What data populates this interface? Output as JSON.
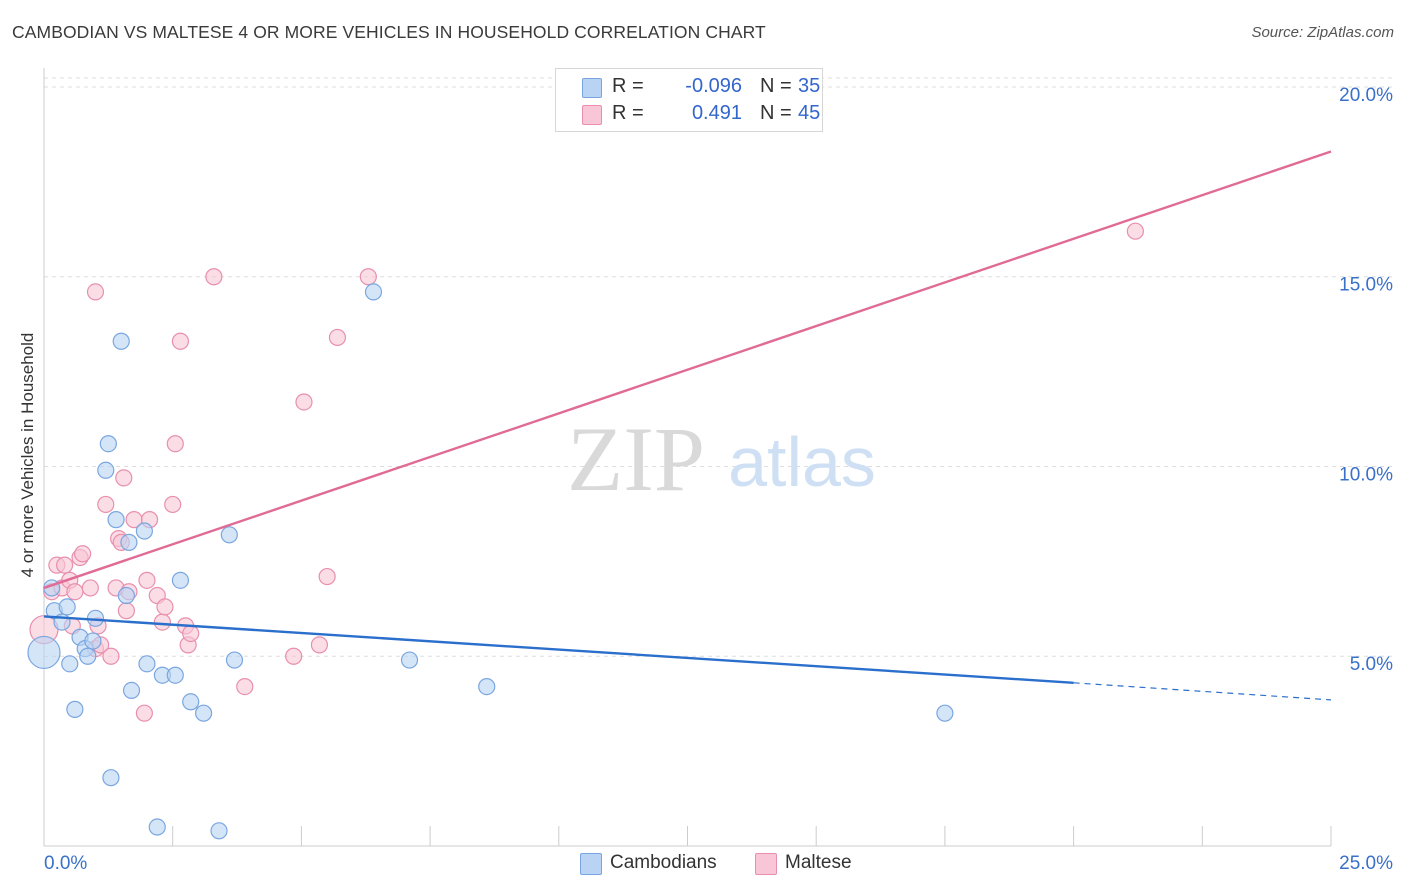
{
  "header": {
    "title": "CAMBODIAN VS MALTESE 4 OR MORE VEHICLES IN HOUSEHOLD CORRELATION CHART",
    "source": "Source: ZipAtlas.com"
  },
  "legend": {
    "rows": [
      {
        "r_label": "R =",
        "r_value": "-0.096",
        "n_label": "N =",
        "n_value": "35"
      },
      {
        "r_label": "R =",
        "r_value": "0.491",
        "n_label": "N =",
        "n_value": "45"
      }
    ],
    "bottom": [
      {
        "label": "Cambodians"
      },
      {
        "label": "Maltese"
      }
    ]
  },
  "watermark": {
    "zip": "ZIP",
    "atlas": "atlas"
  },
  "colors": {
    "cambodians_fill": "#b8d3f3",
    "cambodians_stroke": "#7aa6e0",
    "cambodians_line": "#2b6fcc",
    "maltese_fill": "#f8c6d6",
    "maltese_stroke": "#e88fae",
    "maltese_line": "#e06b95",
    "tick_label": "#3a70c8",
    "grid": "#dddddd"
  },
  "chart_data": {
    "type": "scatter",
    "title": "CAMBODIAN VS MALTESE 4 OR MORE VEHICLES IN HOUSEHOLD CORRELATION CHART",
    "xlabel": "",
    "ylabel": "4 or more Vehicles in Household",
    "xlim": [
      0,
      25
    ],
    "ylim": [
      0,
      20.5
    ],
    "x_tick_labels": [
      "0.0%",
      "25.0%"
    ],
    "y_ticks": [
      5,
      10,
      15,
      20
    ],
    "y_tick_labels": [
      "5.0%",
      "10.0%",
      "15.0%",
      "20.0%"
    ],
    "grid": true,
    "series": [
      {
        "name": "Cambodians",
        "points": [
          [
            0.0,
            5.1,
            32
          ],
          [
            0.15,
            6.8,
            16
          ],
          [
            0.2,
            6.2,
            16
          ],
          [
            0.35,
            5.9,
            16
          ],
          [
            0.45,
            6.3,
            16
          ],
          [
            0.5,
            4.8,
            16
          ],
          [
            0.6,
            3.6,
            16
          ],
          [
            0.7,
            5.5,
            16
          ],
          [
            0.8,
            5.2,
            16
          ],
          [
            0.85,
            5.0,
            16
          ],
          [
            0.95,
            5.4,
            16
          ],
          [
            1.0,
            6.0,
            16
          ],
          [
            1.25,
            10.6,
            16
          ],
          [
            1.3,
            1.8,
            16
          ],
          [
            1.2,
            9.9,
            16
          ],
          [
            1.4,
            8.6,
            16
          ],
          [
            1.5,
            13.3,
            16
          ],
          [
            1.6,
            6.6,
            16
          ],
          [
            1.65,
            8.0,
            16
          ],
          [
            1.7,
            4.1,
            16
          ],
          [
            1.95,
            8.3,
            16
          ],
          [
            2.0,
            4.8,
            16
          ],
          [
            2.2,
            0.5,
            16
          ],
          [
            2.3,
            4.5,
            16
          ],
          [
            2.55,
            4.5,
            16
          ],
          [
            2.65,
            7.0,
            16
          ],
          [
            2.85,
            3.8,
            16
          ],
          [
            3.1,
            3.5,
            16
          ],
          [
            3.4,
            0.4,
            16
          ],
          [
            3.6,
            8.2,
            16
          ],
          [
            3.7,
            4.9,
            16
          ],
          [
            6.4,
            14.6,
            16
          ],
          [
            7.1,
            4.9,
            16
          ],
          [
            8.6,
            4.2,
            16
          ],
          [
            17.5,
            3.5,
            16
          ]
        ],
        "trend": {
          "x": [
            0,
            20
          ],
          "y": [
            6.05,
            4.3
          ]
        },
        "trend_dashed": {
          "x": [
            20,
            25
          ],
          "y": [
            4.3,
            3.85
          ]
        }
      },
      {
        "name": "Maltese",
        "points": [
          [
            0.0,
            5.7,
            28
          ],
          [
            0.15,
            6.7,
            16
          ],
          [
            0.25,
            7.4,
            16
          ],
          [
            0.35,
            6.8,
            16
          ],
          [
            0.4,
            7.4,
            16
          ],
          [
            0.5,
            7.0,
            16
          ],
          [
            0.55,
            5.8,
            16
          ],
          [
            0.6,
            6.7,
            16
          ],
          [
            0.7,
            7.6,
            16
          ],
          [
            0.75,
            7.7,
            16
          ],
          [
            0.9,
            6.8,
            16
          ],
          [
            1.0,
            14.6,
            16
          ],
          [
            1.0,
            5.2,
            16
          ],
          [
            1.05,
            5.8,
            16
          ],
          [
            1.1,
            5.3,
            16
          ],
          [
            1.2,
            9.0,
            16
          ],
          [
            1.3,
            5.0,
            16
          ],
          [
            1.4,
            6.8,
            16
          ],
          [
            1.45,
            8.1,
            16
          ],
          [
            1.5,
            8.0,
            16
          ],
          [
            1.55,
            9.7,
            16
          ],
          [
            1.6,
            6.2,
            16
          ],
          [
            1.65,
            6.7,
            16
          ],
          [
            1.75,
            8.6,
            16
          ],
          [
            1.95,
            3.5,
            16
          ],
          [
            2.0,
            7.0,
            16
          ],
          [
            2.05,
            8.6,
            16
          ],
          [
            2.2,
            6.6,
            16
          ],
          [
            2.3,
            5.9,
            16
          ],
          [
            2.35,
            6.3,
            16
          ],
          [
            2.5,
            9.0,
            16
          ],
          [
            2.55,
            10.6,
            16
          ],
          [
            2.65,
            13.3,
            16
          ],
          [
            2.75,
            5.8,
            16
          ],
          [
            2.8,
            5.3,
            16
          ],
          [
            2.85,
            5.6,
            16
          ],
          [
            3.3,
            15.0,
            16
          ],
          [
            3.9,
            4.2,
            16
          ],
          [
            4.85,
            5.0,
            16
          ],
          [
            5.05,
            11.7,
            16
          ],
          [
            5.35,
            5.3,
            16
          ],
          [
            5.5,
            7.1,
            16
          ],
          [
            5.7,
            13.4,
            16
          ],
          [
            6.3,
            15.0,
            16
          ],
          [
            21.2,
            16.2,
            16
          ]
        ],
        "trend": {
          "x": [
            0,
            25
          ],
          "y": [
            6.8,
            18.3
          ]
        }
      }
    ]
  }
}
